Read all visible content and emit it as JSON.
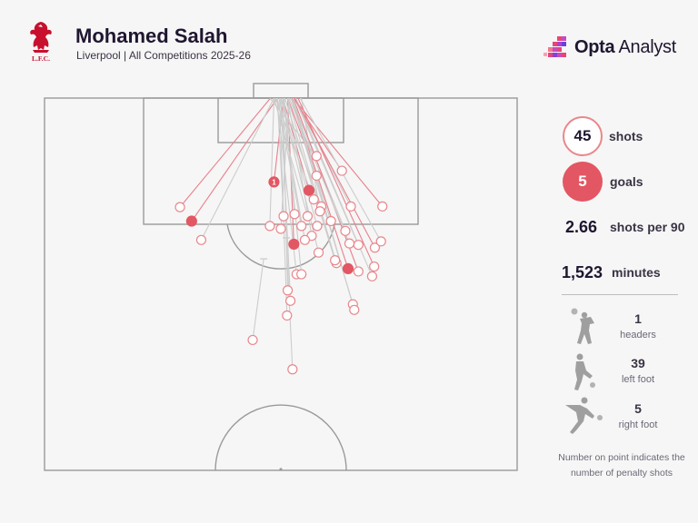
{
  "header": {
    "title": "Mohamed Salah",
    "subtitle": "Liverpool | All Competitions 2025-26",
    "club_logo_text": "L.F.C.",
    "brand_name_bold": "Opta",
    "brand_name_rest": " Analyst"
  },
  "stats": {
    "shots_value": "45",
    "shots_label": "shots",
    "goals_value": "5",
    "goals_label": "goals",
    "shots_per_90_value": "2.66",
    "shots_per_90_label": "shots per 90",
    "minutes_value": "1,523",
    "minutes_label": "minutes"
  },
  "body_parts": [
    {
      "value": "1",
      "label": "headers",
      "icon": "header-player-icon"
    },
    {
      "value": "39",
      "label": "left foot",
      "icon": "left-foot-player-icon"
    },
    {
      "value": "5",
      "label": "right foot",
      "icon": "right-foot-player-icon"
    }
  ],
  "footnote": "Number on point indicates the number of penalty shots",
  "colors": {
    "goal": "#e25763",
    "shot_outline": "#e9878c",
    "on_target_line": "#e8808a",
    "off_target_line": "#cccccc",
    "pitch_line": "#9a9a9a"
  },
  "chart_data": {
    "type": "scatter",
    "title": "Mohamed Salah",
    "units": "pitch coordinates (yards); x = distance from goal line, y = lateral offset from centre (negative = left)",
    "legend": "right panel",
    "penalty_marker_label": "1",
    "shots": [
      {
        "x": 15.6,
        "y": -14.7,
        "end_x": 0,
        "end_y": -1.5,
        "goal": false,
        "on_target": true
      },
      {
        "x": 17.6,
        "y": -13.0,
        "end_x": 0,
        "end_y": -0.5,
        "goal": true,
        "on_target": true
      },
      {
        "x": 20.3,
        "y": -11.6,
        "end_x": 0,
        "end_y": -1.0,
        "goal": false,
        "on_target": false
      },
      {
        "x": 13.2,
        "y": 4.1,
        "end_x": 0,
        "end_y": 0.3,
        "goal": true,
        "on_target": true
      },
      {
        "x": 20.9,
        "y": 1.9,
        "end_x": 0,
        "end_y": 1.0,
        "goal": true,
        "on_target": true
      },
      {
        "x": 24.4,
        "y": 9.8,
        "end_x": 0,
        "end_y": 1.6,
        "goal": true,
        "on_target": true
      },
      {
        "x": 12.0,
        "y": -1.0,
        "end_x": 0,
        "end_y": 0.4,
        "goal": true,
        "on_target": true,
        "penalty": true
      },
      {
        "x": 8.3,
        "y": 5.2,
        "end_x": 0,
        "end_y": -1.6,
        "goal": false,
        "on_target": false
      },
      {
        "x": 11.1,
        "y": 5.2,
        "end_x": 0,
        "end_y": 1.0,
        "goal": false,
        "on_target": true
      },
      {
        "x": 10.4,
        "y": 8.9,
        "end_x": 0,
        "end_y": 1.8,
        "goal": false,
        "on_target": true
      },
      {
        "x": 14.5,
        "y": 4.8,
        "end_x": 0,
        "end_y": -0.8,
        "goal": false,
        "on_target": false
      },
      {
        "x": 15.5,
        "y": 10.2,
        "end_x": 0,
        "end_y": 2.0,
        "goal": false,
        "on_target": false
      },
      {
        "x": 15.5,
        "y": 5.9,
        "end_x": 0,
        "end_y": 0.0,
        "goal": false,
        "on_target": false
      },
      {
        "x": 15.5,
        "y": 14.8,
        "end_x": 0,
        "end_y": 1.8,
        "goal": false,
        "on_target": true
      },
      {
        "x": 16.9,
        "y": 0.4,
        "end_x": 0,
        "end_y": -0.5,
        "goal": false,
        "on_target": false
      },
      {
        "x": 16.6,
        "y": 2.0,
        "end_x": 0,
        "end_y": 0.5,
        "goal": false,
        "on_target": false
      },
      {
        "x": 16.9,
        "y": 3.9,
        "end_x": 0,
        "end_y": -1.0,
        "goal": false,
        "on_target": false
      },
      {
        "x": 16.2,
        "y": 5.7,
        "end_x": 0,
        "end_y": 3.0,
        "goal": false,
        "on_target": false
      },
      {
        "x": 17.6,
        "y": 7.3,
        "end_x": 0,
        "end_y": 1.5,
        "goal": false,
        "on_target": false
      },
      {
        "x": 18.3,
        "y": 5.3,
        "end_x": 0,
        "end_y": 0.0,
        "goal": false,
        "on_target": false
      },
      {
        "x": 18.3,
        "y": 3.0,
        "end_x": 0,
        "end_y": -0.5,
        "goal": false,
        "on_target": false
      },
      {
        "x": 18.3,
        "y": -1.6,
        "end_x": 0,
        "end_y": -1.0,
        "goal": false,
        "on_target": false
      },
      {
        "x": 18.7,
        "y": 0.0,
        "end_x": 0,
        "end_y": 1.2,
        "goal": false,
        "on_target": false
      },
      {
        "x": 19.7,
        "y": 4.5,
        "end_x": 0,
        "end_y": 1.0,
        "goal": false,
        "on_target": false
      },
      {
        "x": 19.0,
        "y": 9.4,
        "end_x": 0,
        "end_y": 1.5,
        "goal": false,
        "on_target": false
      },
      {
        "x": 20.3,
        "y": 3.5,
        "end_x": 0,
        "end_y": -0.2,
        "goal": false,
        "on_target": false
      },
      {
        "x": 21.0,
        "y": 11.3,
        "end_x": 0,
        "end_y": 2.0,
        "goal": false,
        "on_target": false
      },
      {
        "x": 22.1,
        "y": 5.5,
        "end_x": 0,
        "end_y": 0.0,
        "goal": false,
        "on_target": false
      },
      {
        "x": 23.6,
        "y": 8.1,
        "end_x": 0,
        "end_y": 1.0,
        "goal": false,
        "on_target": false
      },
      {
        "x": 23.2,
        "y": 7.9,
        "end_x": 0,
        "end_y": 0.6,
        "goal": false,
        "on_target": false
      },
      {
        "x": 24.1,
        "y": 13.6,
        "end_x": 0,
        "end_y": 2.5,
        "goal": false,
        "on_target": true
      },
      {
        "x": 24.8,
        "y": 11.3,
        "end_x": 0,
        "end_y": 1.8,
        "goal": false,
        "on_target": true
      },
      {
        "x": 25.5,
        "y": 13.3,
        "end_x": 0,
        "end_y": 2.2,
        "goal": false,
        "on_target": false
      },
      {
        "x": 25.2,
        "y": 2.3,
        "end_x": 0,
        "end_y": -0.6,
        "goal": false,
        "on_target": false
      },
      {
        "x": 25.2,
        "y": 3.0,
        "end_x": 0,
        "end_y": 0.4,
        "goal": false,
        "on_target": false
      },
      {
        "x": 21.4,
        "y": 13.7,
        "end_x": 0,
        "end_y": 2.0,
        "goal": false,
        "on_target": true
      },
      {
        "x": 20.8,
        "y": 10.0,
        "end_x": 0,
        "end_y": 1.2,
        "goal": false,
        "on_target": false
      },
      {
        "x": 20.5,
        "y": 14.6,
        "end_x": 0,
        "end_y": 2.8,
        "goal": false,
        "on_target": false
      },
      {
        "x": 27.5,
        "y": 1.0,
        "end_x": 0,
        "end_y": 0.3,
        "goal": false,
        "on_target": false
      },
      {
        "x": 29.0,
        "y": 1.4,
        "end_x": 0,
        "end_y": 0.0,
        "goal": false,
        "on_target": false
      },
      {
        "x": 31.1,
        "y": 0.9,
        "end_x": 0,
        "end_y": -0.2,
        "goal": false,
        "on_target": false
      },
      {
        "x": 29.5,
        "y": 10.5,
        "end_x": 0,
        "end_y": 1.5,
        "goal": false,
        "on_target": false
      },
      {
        "x": 30.3,
        "y": 10.7,
        "end_x": 0,
        "end_y": 1.8,
        "goal": false,
        "on_target": false
      },
      {
        "x": 34.6,
        "y": -4.1,
        "end_x": 23.0,
        "end_y": -2.5,
        "goal": false,
        "on_target": false,
        "blocked": true
      },
      {
        "x": 38.8,
        "y": 1.7,
        "end_x": 20.0,
        "end_y": 0.8,
        "goal": false,
        "on_target": false,
        "blocked": true
      }
    ]
  }
}
